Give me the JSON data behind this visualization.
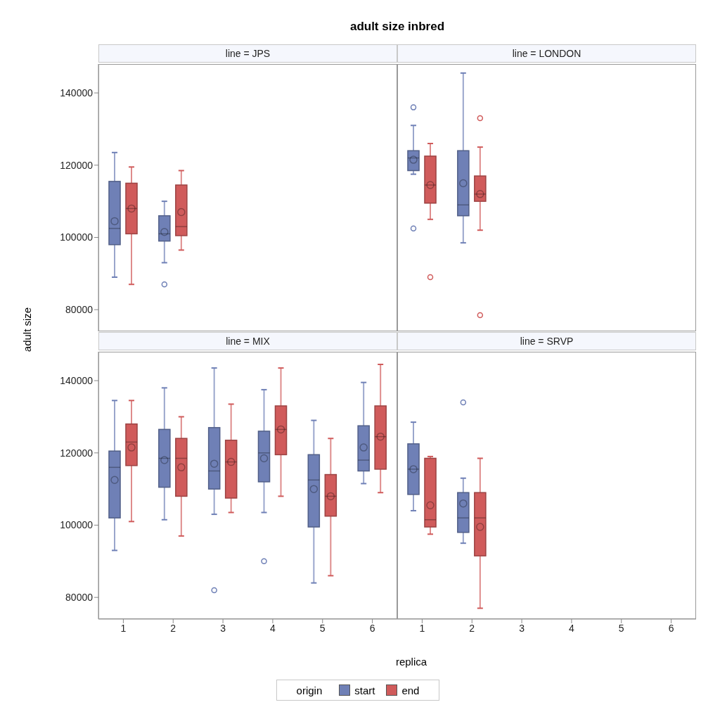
{
  "chart_data": [
    {
      "type": "box",
      "title": "adult size inbred",
      "subtitle": "line = JPS",
      "ylabel": "adult size",
      "categories": [
        "1",
        "2",
        "3",
        "4",
        "5",
        "6"
      ],
      "ylim": [
        74000,
        148000
      ],
      "yticks": [
        80000,
        100000,
        120000,
        140000
      ],
      "tick_labels": "y",
      "grid": false,
      "series": [
        {
          "color": "#6f80b6",
          "boxes": [
            {
              "low": 89000,
              "q1": 98000,
              "median": 102500,
              "q3": 115500,
              "high": 123500,
              "mean": 104500
            },
            {
              "low": 93000,
              "q1": 99000,
              "median": 101000,
              "q3": 106000,
              "high": 110000,
              "mean": 101500,
              "outliers": [
                87000
              ]
            },
            null,
            null,
            null,
            null
          ]
        },
        {
          "color": "#d05b5b",
          "boxes": [
            {
              "low": 87000,
              "q1": 101000,
              "median": 108000,
              "q3": 115000,
              "high": 119500,
              "mean": 108000
            },
            {
              "low": 96500,
              "q1": 100500,
              "median": 103000,
              "q3": 114500,
              "high": 118500,
              "mean": 107000
            },
            null,
            null,
            null,
            null
          ]
        }
      ]
    },
    {
      "type": "box",
      "subtitle": "line = LONDON",
      "categories": [
        "1",
        "2",
        "3",
        "4",
        "5",
        "6"
      ],
      "ylim": [
        74000,
        148000
      ],
      "yticks": [
        80000,
        100000,
        120000,
        140000
      ],
      "tick_labels": false,
      "grid": false,
      "series": [
        {
          "color": "#6f80b6",
          "boxes": [
            {
              "low": 117500,
              "q1": 118500,
              "median": 122000,
              "q3": 124000,
              "high": 131000,
              "mean": 121500,
              "outliers": [
                136000,
                102500
              ]
            },
            {
              "low": 98500,
              "q1": 106000,
              "median": 109000,
              "q3": 124000,
              "high": 145500,
              "mean": 115000
            },
            null,
            null,
            null,
            null
          ]
        },
        {
          "color": "#d05b5b",
          "boxes": [
            {
              "low": 105000,
              "q1": 109500,
              "median": 114500,
              "q3": 122500,
              "high": 126000,
              "mean": 114500,
              "outliers": [
                89000
              ]
            },
            {
              "low": 102000,
              "q1": 110000,
              "median": 112000,
              "q3": 117000,
              "high": 125000,
              "mean": 112000,
              "outliers": [
                133000,
                78500
              ]
            },
            null,
            null,
            null,
            null
          ]
        }
      ]
    },
    {
      "type": "box",
      "subtitle": "line = MIX",
      "xlabel": "replica",
      "legend": "bottom",
      "legend_title": "origin",
      "categories": [
        "1",
        "2",
        "3",
        "4",
        "5",
        "6"
      ],
      "ylim": [
        74000,
        148000
      ],
      "yticks": [
        80000,
        100000,
        120000,
        140000
      ],
      "grid": false,
      "series": [
        {
          "name": "start",
          "color": "#6f80b6",
          "boxes": [
            {
              "low": 93000,
              "q1": 102000,
              "median": 116000,
              "q3": 120500,
              "high": 134500,
              "mean": 112500
            },
            {
              "low": 101500,
              "q1": 110500,
              "median": 118500,
              "q3": 126500,
              "high": 138000,
              "mean": 118000
            },
            {
              "low": 103000,
              "q1": 110000,
              "median": 115000,
              "q3": 127000,
              "high": 143500,
              "mean": 117000,
              "outliers": [
                82000
              ]
            },
            {
              "low": 103500,
              "q1": 112000,
              "median": 120000,
              "q3": 126000,
              "high": 137500,
              "mean": 118500,
              "outliers": [
                90000
              ]
            },
            {
              "low": 84000,
              "q1": 99500,
              "median": 112500,
              "q3": 119500,
              "high": 129000,
              "mean": 110000
            },
            {
              "low": 111500,
              "q1": 115000,
              "median": 118000,
              "q3": 127500,
              "high": 139500,
              "mean": 121500
            }
          ]
        },
        {
          "name": "end",
          "color": "#d05b5b",
          "boxes": [
            {
              "low": 101000,
              "q1": 116500,
              "median": 123000,
              "q3": 128000,
              "high": 134500,
              "mean": 121500
            },
            {
              "low": 97000,
              "q1": 108000,
              "median": 118500,
              "q3": 124000,
              "high": 130000,
              "mean": 116000
            },
            {
              "low": 103500,
              "q1": 107500,
              "median": 117500,
              "q3": 123500,
              "high": 133500,
              "mean": 117500
            },
            {
              "low": 108000,
              "q1": 119500,
              "median": 126500,
              "q3": 133000,
              "high": 143500,
              "mean": 126500
            },
            {
              "low": 86000,
              "q1": 102500,
              "median": 108000,
              "q3": 114000,
              "high": 124000,
              "mean": 108000
            },
            {
              "low": 109000,
              "q1": 115500,
              "median": 124500,
              "q3": 133000,
              "high": 144500,
              "mean": 124500
            }
          ]
        }
      ]
    },
    {
      "type": "box",
      "subtitle": "line = SRVP",
      "categories": [
        "1",
        "2",
        "3",
        "4",
        "5",
        "6"
      ],
      "ylim": [
        74000,
        148000
      ],
      "yticks": [
        80000,
        100000,
        120000,
        140000
      ],
      "tick_labels": "x",
      "grid": false,
      "series": [
        {
          "color": "#6f80b6",
          "boxes": [
            {
              "low": 104000,
              "q1": 108500,
              "median": 115500,
              "q3": 122500,
              "high": 128500,
              "mean": 115500
            },
            {
              "low": 95000,
              "q1": 98000,
              "median": 102000,
              "q3": 109000,
              "high": 113000,
              "mean": 106000,
              "outliers": [
                134000
              ]
            },
            null,
            null,
            null,
            null
          ]
        },
        {
          "color": "#d05b5b",
          "boxes": [
            {
              "low": 97500,
              "q1": 99500,
              "median": 101500,
              "q3": 118500,
              "high": 119000,
              "mean": 105500
            },
            {
              "low": 77000,
              "q1": 91500,
              "median": 102000,
              "q3": 109000,
              "high": 118500,
              "mean": 99500
            },
            null,
            null,
            null,
            null
          ]
        }
      ]
    }
  ]
}
